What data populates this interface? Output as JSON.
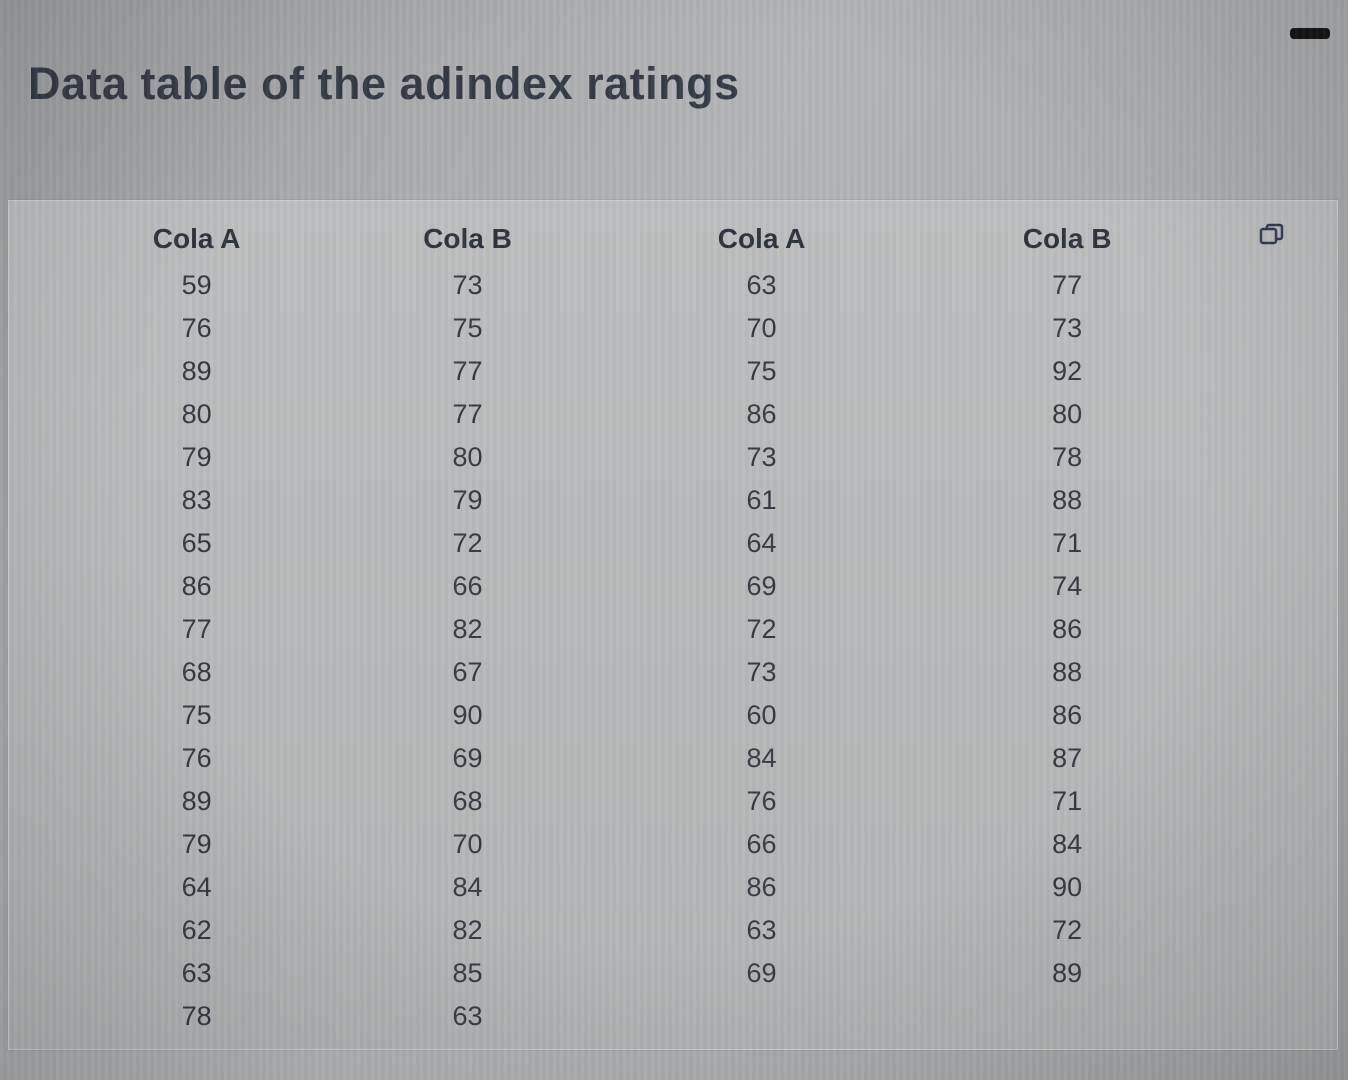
{
  "page": {
    "title": "Data table of the adindex ratings"
  },
  "icons": {
    "copy": "copy-icon",
    "window_dash": "dash-icon"
  },
  "colors": {
    "background": "#b0b2b4",
    "panel": "#b8babb",
    "title_text": "#353b47",
    "table_text": "#343a42",
    "dash": "#141414",
    "copy_icon": "#2e3a52"
  },
  "table": {
    "columns": [
      {
        "header": "Cola A",
        "values": [
          59,
          76,
          89,
          80,
          79,
          83,
          65,
          86,
          77,
          68,
          75,
          76,
          89,
          79,
          64,
          62,
          63,
          78
        ]
      },
      {
        "header": "Cola B",
        "values": [
          73,
          75,
          77,
          77,
          80,
          79,
          72,
          66,
          82,
          67,
          90,
          69,
          68,
          70,
          84,
          82,
          85,
          63
        ]
      },
      {
        "header": "Cola A",
        "values": [
          63,
          70,
          75,
          86,
          73,
          61,
          64,
          69,
          72,
          73,
          60,
          84,
          76,
          66,
          86,
          63,
          69
        ]
      },
      {
        "header": "Cola B",
        "values": [
          77,
          73,
          92,
          80,
          78,
          88,
          71,
          74,
          86,
          88,
          86,
          87,
          71,
          84,
          90,
          72,
          89
        ]
      }
    ]
  }
}
